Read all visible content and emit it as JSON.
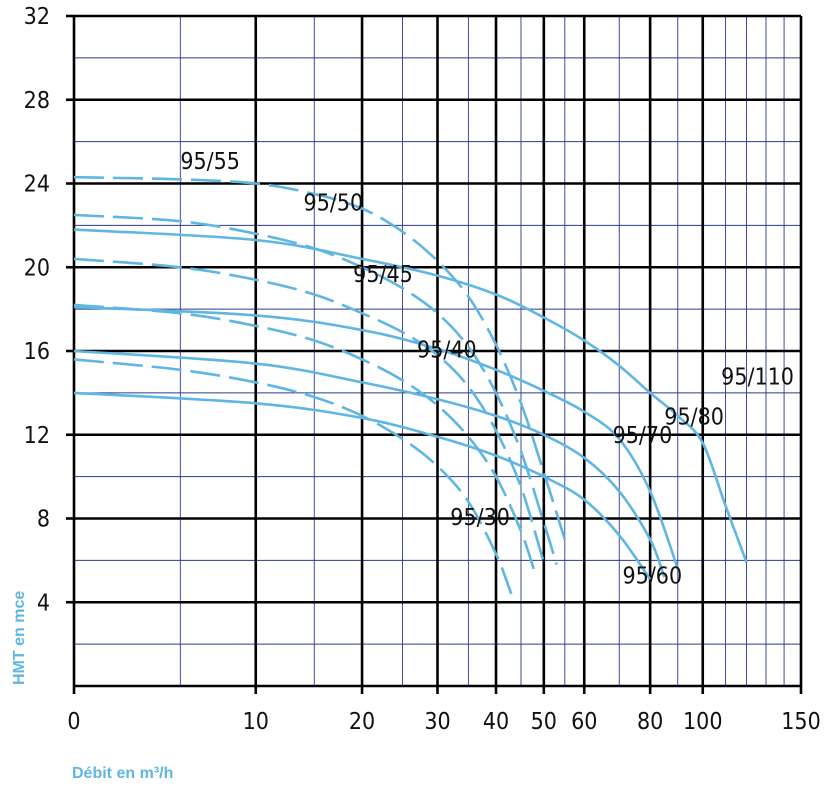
{
  "chart_data": {
    "type": "line",
    "title": "",
    "xlabel": "Débit en m³/h",
    "ylabel": "HMT en mce",
    "x_scale": "log(x + 10)",
    "xlim": [
      0,
      150
    ],
    "ylim": [
      0,
      32
    ],
    "x_ticks": [
      0,
      10,
      20,
      30,
      40,
      50,
      60,
      80,
      100,
      150
    ],
    "x_tick_labels": [
      "0",
      "10",
      "20",
      "30",
      "40",
      "50",
      "60",
      "80",
      "100",
      "150"
    ],
    "y_ticks": [
      4,
      8,
      12,
      16,
      20,
      24,
      28,
      32
    ],
    "y_tick_labels": [
      "4",
      "8",
      "12",
      "16",
      "20",
      "24",
      "28",
      "32"
    ],
    "grid": true,
    "legend": "none",
    "curve_color": "#5fb6e3",
    "series": [
      {
        "name": "95/55",
        "style": "dashed",
        "x": [
          0,
          5,
          10,
          15,
          20,
          25,
          30,
          35,
          40,
          45,
          50,
          55
        ],
        "y": [
          24.3,
          24.2,
          24.0,
          23.5,
          22.8,
          21.7,
          20.3,
          18.6,
          16.3,
          13.5,
          10.2,
          7.0
        ]
      },
      {
        "name": "95/50",
        "style": "dashed",
        "x": [
          0,
          5,
          10,
          15,
          20,
          25,
          30,
          35,
          40,
          45,
          50,
          53
        ],
        "y": [
          22.5,
          22.2,
          21.6,
          20.9,
          20.0,
          19.0,
          17.8,
          16.2,
          14.0,
          11.2,
          7.8,
          5.8
        ]
      },
      {
        "name": "95/45",
        "style": "dashed",
        "x": [
          0,
          5,
          10,
          15,
          20,
          25,
          30,
          35,
          40,
          45,
          50
        ],
        "y": [
          20.4,
          20.0,
          19.4,
          18.7,
          17.8,
          16.9,
          15.8,
          14.3,
          12.2,
          9.5,
          5.9
        ]
      },
      {
        "name": "95/40",
        "style": "dashed",
        "x": [
          0,
          5,
          10,
          15,
          20,
          25,
          30,
          35,
          40,
          45,
          48
        ],
        "y": [
          18.2,
          17.8,
          17.2,
          16.5,
          15.6,
          14.6,
          13.4,
          11.9,
          10.0,
          7.4,
          5.4
        ]
      },
      {
        "name": "95/30",
        "style": "dashed",
        "x": [
          0,
          5,
          10,
          15,
          20,
          25,
          30,
          35,
          40,
          43
        ],
        "y": [
          15.6,
          15.1,
          14.5,
          13.8,
          12.9,
          11.8,
          10.5,
          8.8,
          6.3,
          4.4
        ]
      },
      {
        "name": "95/110",
        "style": "solid",
        "x": [
          0,
          10,
          20,
          30,
          40,
          50,
          60,
          70,
          80,
          90,
          100,
          110,
          120
        ],
        "y": [
          21.8,
          21.3,
          20.4,
          19.6,
          18.7,
          17.6,
          16.5,
          15.3,
          14.0,
          12.9,
          11.6,
          8.6,
          5.9
        ]
      },
      {
        "name": "95/80",
        "style": "solid",
        "x": [
          0,
          10,
          20,
          30,
          40,
          50,
          60,
          70,
          80,
          90
        ],
        "y": [
          18.1,
          17.7,
          17.0,
          16.1,
          15.1,
          14.1,
          13.1,
          11.8,
          9.3,
          5.6
        ]
      },
      {
        "name": "95/70",
        "style": "solid",
        "x": [
          0,
          10,
          20,
          30,
          40,
          50,
          60,
          70,
          80,
          85
        ],
        "y": [
          16.0,
          15.4,
          14.5,
          13.7,
          12.9,
          12.0,
          10.9,
          9.3,
          7.0,
          5.2
        ]
      },
      {
        "name": "95/60",
        "style": "solid",
        "x": [
          0,
          10,
          20,
          30,
          40,
          50,
          60,
          70,
          80
        ],
        "y": [
          14.0,
          13.5,
          12.8,
          11.9,
          11.0,
          10.0,
          8.9,
          7.2,
          5.1
        ]
      }
    ],
    "annotations": [
      {
        "text": "95/55",
        "x": 5,
        "y": 24.7
      },
      {
        "text": "95/50",
        "x": 14,
        "y": 22.7
      },
      {
        "text": "95/45",
        "x": 19,
        "y": 19.3
      },
      {
        "text": "95/40",
        "x": 27,
        "y": 15.7
      },
      {
        "text": "95/30",
        "x": 32,
        "y": 7.7
      },
      {
        "text": "95/110",
        "x": 108,
        "y": 14.4
      },
      {
        "text": "95/80",
        "x": 85,
        "y": 12.5
      },
      {
        "text": "95/70",
        "x": 68,
        "y": 11.6
      },
      {
        "text": "95/60",
        "x": 71,
        "y": 4.9
      }
    ]
  }
}
